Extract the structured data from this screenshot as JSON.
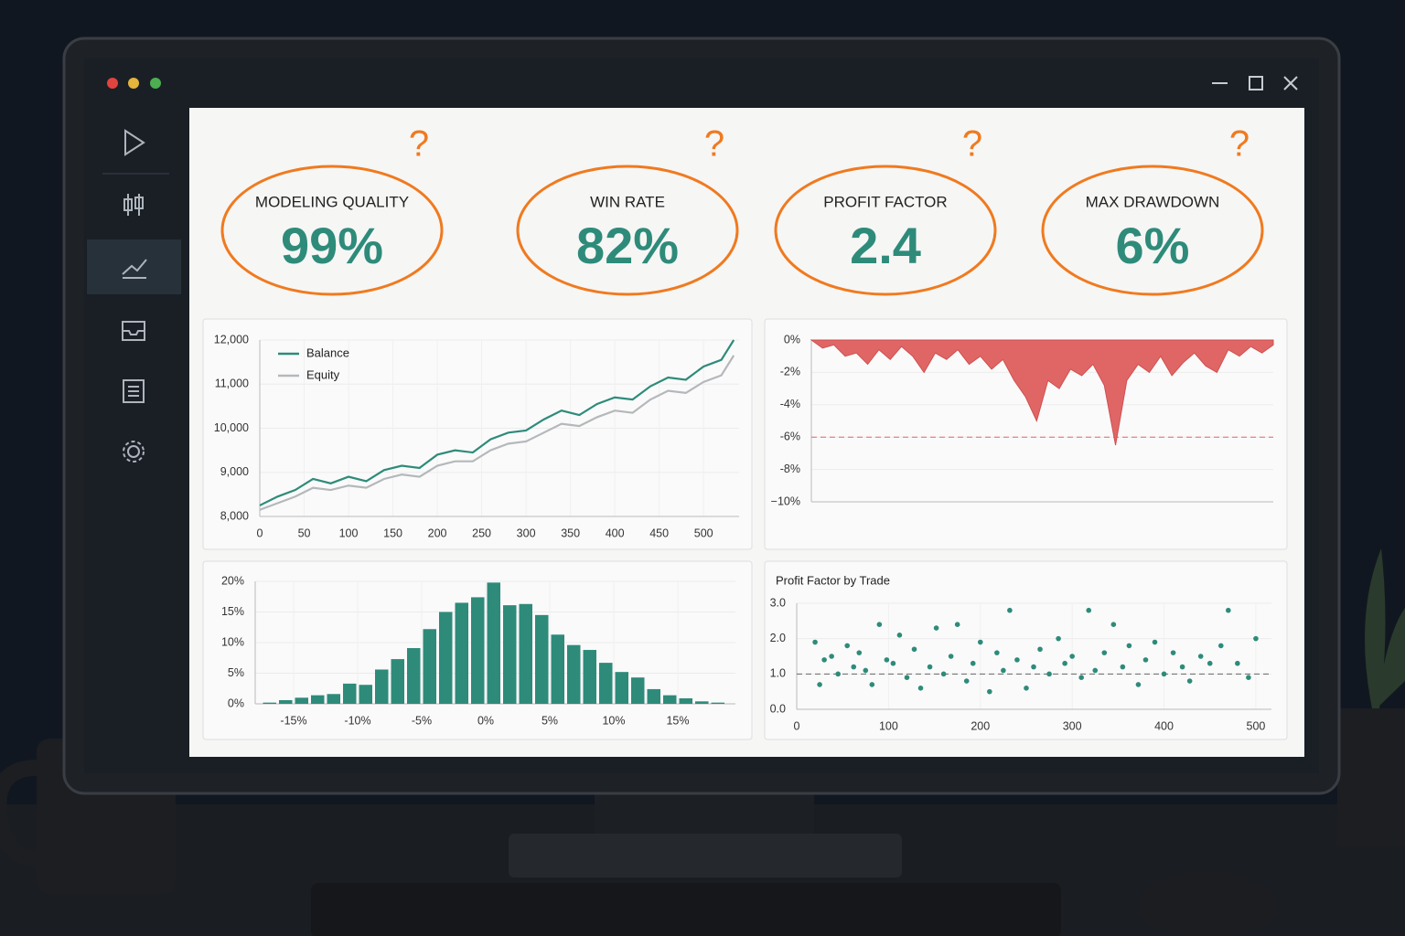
{
  "kpis": [
    {
      "label": "MODELING QUALITY",
      "value": "99%",
      "note": "?"
    },
    {
      "label": "WIN RATE",
      "value": "82%",
      "note": "?"
    },
    {
      "label": "PROFIT FACTOR",
      "value": "2.4",
      "note": "?"
    },
    {
      "label": "MAX DRAWDOWN",
      "value": "6%",
      "note": "?"
    }
  ],
  "chart_data": [
    {
      "type": "line",
      "x": [
        0,
        20,
        40,
        60,
        80,
        100,
        120,
        140,
        160,
        180,
        200,
        220,
        240,
        260,
        280,
        300,
        320,
        340,
        360,
        380,
        400,
        420,
        440,
        460,
        480,
        500,
        520,
        534
      ],
      "series": [
        {
          "name": "Balance",
          "color": "#2e8b7a",
          "values": [
            8250,
            8450,
            8600,
            8850,
            8750,
            8900,
            8800,
            9050,
            9150,
            9100,
            9400,
            9500,
            9450,
            9750,
            9900,
            9950,
            10200,
            10400,
            10300,
            10550,
            10700,
            10650,
            10950,
            11150,
            11100,
            11400,
            11550,
            12000
          ]
        },
        {
          "name": "Equity",
          "color": "#b5b8bb",
          "values": [
            8150,
            8300,
            8450,
            8650,
            8600,
            8700,
            8650,
            8850,
            8950,
            8900,
            9150,
            9250,
            9250,
            9500,
            9650,
            9700,
            9900,
            10100,
            10050,
            10250,
            10400,
            10350,
            10650,
            10850,
            10800,
            11050,
            11200,
            11650
          ]
        }
      ],
      "xlim": [
        0,
        540
      ],
      "xticks": [
        0,
        50,
        100,
        150,
        200,
        250,
        300,
        350,
        400,
        450,
        500
      ],
      "ylim": [
        8000,
        12000
      ],
      "yticks": [
        {
          "value": 8000,
          "label": "8,000"
        },
        {
          "value": 9000,
          "label": "9,000"
        },
        {
          "value": 10000,
          "label": "10,000"
        },
        {
          "value": 11000,
          "label": "11,000"
        },
        {
          "value": 12000,
          "label": "12,000"
        }
      ],
      "grid": true,
      "legend": "top-left"
    },
    {
      "type": "area",
      "color": "#e06666",
      "values": [
        0,
        -0.5,
        -0.3,
        -1,
        -0.8,
        -1.5,
        -0.6,
        -1.2,
        -0.4,
        -1.0,
        -2.0,
        -0.8,
        -1.2,
        -0.6,
        -1.5,
        -1.0,
        -1.8,
        -1.2,
        -2.5,
        -3.5,
        -5.0,
        -2.5,
        -3.0,
        -1.8,
        -2.2,
        -1.5,
        -2.8,
        -6.5,
        -2.5,
        -1.5,
        -2.0,
        -1.0,
        -2.2,
        -1.4,
        -0.8,
        -1.6,
        -2.0,
        -0.6,
        -1.0,
        -0.4,
        -0.8,
        -0.3
      ],
      "ylim": [
        -10,
        0
      ],
      "yticks": [
        {
          "value": 0,
          "label": "0%"
        },
        {
          "value": -2,
          "label": "-2%"
        },
        {
          "value": -4,
          "label": "-4%"
        },
        {
          "value": -6,
          "label": "-6%"
        },
        {
          "value": -8,
          "label": "-8%"
        },
        {
          "value": -10,
          "label": "−10%"
        }
      ],
      "reference_line": -6,
      "grid": true
    },
    {
      "type": "histogram",
      "color": "#2e8b7a",
      "bins": [
        -17.5,
        -16.25,
        -15,
        -13.75,
        -12.5,
        -11.25,
        -10,
        -8.75,
        -7.5,
        -6.25,
        -5,
        -3.75,
        -2.5,
        -1.25,
        0,
        1.25,
        2.5,
        3.75,
        5,
        6.25,
        7.5,
        8.75,
        10,
        11.25,
        12.5,
        13.75,
        15,
        16.25,
        17.5,
        18.75
      ],
      "counts": [
        0.2,
        0.6,
        1,
        1.4,
        1.6,
        3.3,
        3.1,
        5.6,
        7.3,
        9.1,
        12.2,
        15,
        16.5,
        17.4,
        19.8,
        16.1,
        16.3,
        14.5,
        11.3,
        9.6,
        8.8,
        6.7,
        5.2,
        4.3,
        2.4,
        1.4,
        0.9,
        0.4,
        0.2
      ],
      "xlim": [
        -18,
        19.5
      ],
      "xticks": [
        {
          "value": -15,
          "label": "-15%"
        },
        {
          "value": -10,
          "label": "-10%"
        },
        {
          "value": -5,
          "label": "-5%"
        },
        {
          "value": 0,
          "label": "0%"
        },
        {
          "value": 5,
          "label": "5%"
        },
        {
          "value": 10,
          "label": "10%"
        },
        {
          "value": 15,
          "label": "15%"
        }
      ],
      "ylim": [
        0,
        20
      ],
      "yticks": [
        {
          "value": 0,
          "label": "0%"
        },
        {
          "value": 5,
          "label": "5%"
        },
        {
          "value": 10,
          "label": "10%"
        },
        {
          "value": 15,
          "label": "15%"
        },
        {
          "value": 20,
          "label": "20%"
        }
      ],
      "grid": true
    },
    {
      "type": "scatter",
      "title": "Profit Factor by Trade",
      "color": "#2e8b7a",
      "x": [
        20,
        25,
        30,
        38,
        45,
        55,
        62,
        68,
        75,
        82,
        90,
        98,
        105,
        112,
        120,
        128,
        135,
        145,
        152,
        160,
        168,
        175,
        185,
        192,
        200,
        210,
        218,
        225,
        232,
        240,
        250,
        258,
        265,
        275,
        285,
        292,
        300,
        310,
        318,
        325,
        335,
        345,
        355,
        362,
        372,
        380,
        390,
        400,
        410,
        420,
        428,
        440,
        450,
        462,
        470,
        480,
        492,
        500
      ],
      "y": [
        1.9,
        0.7,
        1.4,
        1.5,
        1.0,
        1.8,
        1.2,
        1.6,
        1.1,
        0.7,
        2.4,
        1.4,
        1.3,
        2.1,
        0.9,
        1.7,
        0.6,
        1.2,
        2.3,
        1.0,
        1.5,
        2.4,
        0.8,
        1.3,
        1.9,
        0.5,
        1.6,
        1.1,
        2.8,
        1.4,
        0.6,
        1.2,
        1.7,
        1.0,
        2.0,
        1.3,
        1.5,
        0.9,
        2.8,
        1.1,
        1.6,
        2.4,
        1.2,
        1.8,
        0.7,
        1.4,
        1.9,
        1.0,
        1.6,
        1.2,
        0.8,
        1.5,
        1.3,
        1.8,
        2.8,
        1.3,
        0.9,
        2.0
      ],
      "xlim": [
        0,
        517
      ],
      "xticks": [
        0,
        100,
        200,
        300,
        400,
        500
      ],
      "ylim": [
        0,
        3
      ],
      "yticks": [
        {
          "value": 0,
          "label": "0.0"
        },
        {
          "value": 1,
          "label": "1.0"
        },
        {
          "value": 2,
          "label": "2.0"
        },
        {
          "value": 3,
          "label": "3.0"
        }
      ],
      "reference_line": 1,
      "grid": true
    }
  ]
}
